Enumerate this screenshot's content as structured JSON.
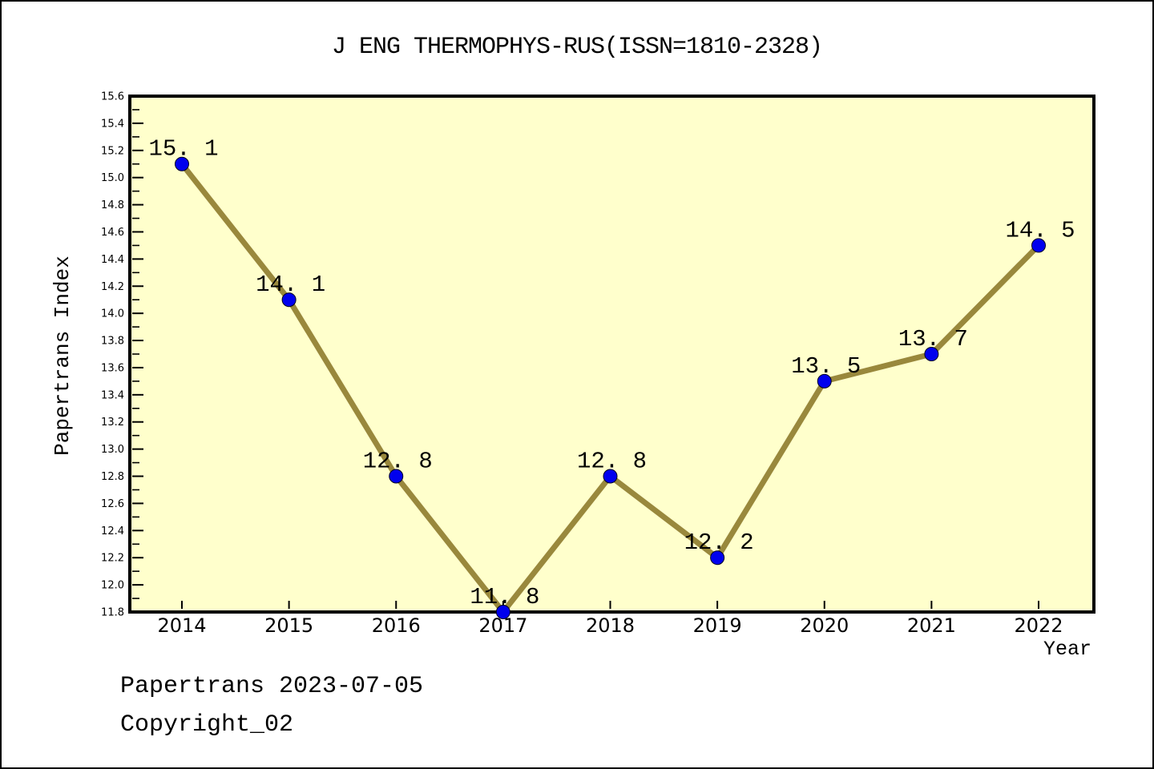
{
  "footer": {
    "line1": "Papertrans 2023-07-05",
    "line2": "Copyright_02"
  },
  "chart_data": {
    "type": "line",
    "title": "J ENG THERMOPHYS-RUS(ISSN=1810-2328)",
    "xlabel": "Year",
    "ylabel": "Papertrans Index",
    "x": [
      2014,
      2015,
      2016,
      2017,
      2018,
      2019,
      2020,
      2021,
      2022
    ],
    "xtick_labels": [
      "2014",
      "2015",
      "2016",
      "2017",
      "2018",
      "2019",
      "2020",
      "2021",
      "2022"
    ],
    "values": [
      15.1,
      14.1,
      12.8,
      11.8,
      12.8,
      12.2,
      13.5,
      13.7,
      14.5
    ],
    "point_labels": [
      "15. 1",
      "14. 1",
      "12. 8",
      "11. 8",
      "12. 8",
      "12. 2",
      "13. 5",
      "13. 7",
      "14. 5"
    ],
    "ylim": [
      11.8,
      15.6
    ],
    "ytick_step": 0.2,
    "yminor_step": 0.1,
    "ytick_labels": [
      "11.8",
      "12.0",
      "12.2",
      "12.4",
      "12.6",
      "12.8",
      "13.0",
      "13.2",
      "13.4",
      "13.6",
      "13.8",
      "14.0",
      "14.2",
      "14.4",
      "14.6",
      "14.8",
      "15.0",
      "15.2",
      "15.4",
      "15.6"
    ],
    "grid": false,
    "legend": "none",
    "colors": {
      "plot_bg": "#FFFFCC",
      "line": "#99883C",
      "marker": "#0000EE",
      "marker_edge": "#000022",
      "border": "#000000",
      "text": "#000000"
    }
  }
}
